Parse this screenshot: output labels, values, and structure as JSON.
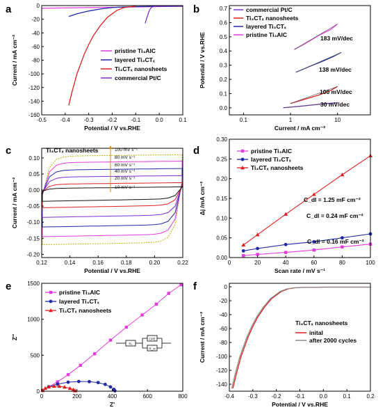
{
  "colors": {
    "pristine": "#e33be0",
    "layered": "#1f2aa6",
    "nanosheets": "#e02020",
    "pt": "#7b2fd0",
    "after2000": "#8a8a8a"
  },
  "chart_data": [
    {
      "panel": "a",
      "type": "line",
      "xlabel": "Potential / V vs.RHE",
      "ylabel": "Current / mA cm⁻²",
      "xlim": [
        -0.5,
        0.1
      ],
      "ylim": [
        -160,
        0
      ],
      "xticks": [
        "-0.5",
        "-0.4",
        "-0.3",
        "-0.2",
        "-0.1",
        "0.0",
        "0.1"
      ],
      "yticks": [
        "-160",
        "-140",
        "-120",
        "-100",
        "-80",
        "-60",
        "-40",
        "-20",
        "0"
      ],
      "legend": [
        {
          "text": "pristine Ti₃AlC",
          "color": "pristine"
        },
        {
          "text": "layered Ti₃CTₓ",
          "color": "layered"
        },
        {
          "text": "Ti₃CTₓ nanosheets",
          "color": "nanosheets"
        },
        {
          "text": "commercial Pt/C",
          "color": "pt"
        }
      ],
      "series": [
        {
          "name": "pristine Ti₃AlC",
          "color": "pristine",
          "x": [
            -0.5,
            -0.4,
            -0.3,
            -0.2,
            -0.1,
            0.0,
            0.1
          ],
          "y": [
            -4,
            -3.5,
            -3,
            -2.5,
            -2,
            -1.5,
            -1
          ]
        },
        {
          "name": "layered Ti₃CTₓ",
          "color": "layered",
          "x": [
            -0.385,
            -0.35,
            -0.3,
            -0.25,
            -0.2,
            -0.15,
            -0.1,
            0.0,
            0.1
          ],
          "y": [
            -16,
            -12,
            -8,
            -5,
            -3,
            -2,
            -1.5,
            -1,
            -1
          ]
        },
        {
          "name": "Ti₃CTₓ nanosheets",
          "color": "nanosheets",
          "x": [
            -0.385,
            -0.37,
            -0.35,
            -0.32,
            -0.3,
            -0.28,
            -0.25,
            -0.22,
            -0.2,
            -0.18,
            -0.15,
            -0.12,
            -0.1
          ],
          "y": [
            -146,
            -125,
            -100,
            -72,
            -57,
            -44,
            -29,
            -17,
            -12,
            -7,
            -3,
            -1.5,
            -1
          ]
        },
        {
          "name": "commercial Pt/C",
          "color": "pt",
          "x": [
            -0.06,
            -0.055,
            -0.05,
            -0.045,
            -0.04,
            -0.035,
            -0.03,
            -0.02,
            0.0,
            0.1
          ],
          "y": [
            -26,
            -20,
            -15,
            -10,
            -6,
            -3.5,
            -2,
            -1,
            -0.5,
            -0.5
          ]
        }
      ]
    },
    {
      "panel": "b",
      "type": "line",
      "xlabel": "Current / mA cm⁻²",
      "ylabel": "Potential / V vs.RHE",
      "xscale": "log",
      "xlim": [
        0.05,
        50
      ],
      "ylim": [
        -0.05,
        0.72
      ],
      "xticks": [
        "0.1",
        "1",
        "10"
      ],
      "xtick_values": [
        0.1,
        1,
        10
      ],
      "yticks": [
        "0.0",
        "0.1",
        "0.2",
        "0.3",
        "0.4",
        "0.5",
        "0.6",
        "0.7"
      ],
      "legend": [
        {
          "text": "commercial Pt/C",
          "color": "pt"
        },
        {
          "text": "Ti₃CTₓ nanosheets",
          "color": "nanosheets"
        },
        {
          "text": "layered Ti₃CTₓ",
          "color": "layered"
        },
        {
          "text": "pristine Ti₃AlC",
          "color": "pristine"
        }
      ],
      "annotations": [
        "183 mV/dec",
        "138 mV/dec",
        "100 mV/dec",
        "30 mV/dec"
      ],
      "series": [
        {
          "name": "pristine Ti₃AlC",
          "color": "pristine",
          "x": [
            1.2,
            2,
            4,
            7,
            10
          ],
          "y": [
            0.41,
            0.45,
            0.51,
            0.55,
            0.59
          ]
        },
        {
          "name": "layered Ti₃CTₓ",
          "color": "layered",
          "x": [
            1.3,
            2.5,
            5,
            8,
            12
          ],
          "y": [
            0.25,
            0.29,
            0.33,
            0.36,
            0.39
          ]
        },
        {
          "name": "Ti₃CTₓ nanosheets",
          "color": "nanosheets",
          "x": [
            1.0,
            2,
            4,
            7,
            10
          ],
          "y": [
            0.03,
            0.06,
            0.09,
            0.12,
            0.15
          ]
        },
        {
          "name": "commercial Pt/C",
          "color": "pt",
          "x": [
            0.7,
            1.5,
            3,
            6,
            10
          ],
          "y": [
            0.0,
            0.01,
            0.02,
            0.03,
            0.035
          ]
        }
      ]
    },
    {
      "panel": "c",
      "type": "line",
      "xlabel": "Potential / V vs.RHE",
      "ylabel": "Current / mA cm⁻²",
      "xlim": [
        0.12,
        0.22
      ],
      "ylim": [
        -0.21,
        0.13
      ],
      "xticks": [
        "0.12",
        "0.14",
        "0.16",
        "0.18",
        "0.20",
        "0.22"
      ],
      "yticks": [
        "-0.20",
        "-0.15",
        "-0.10",
        "-0.05",
        "0.00",
        "0.05",
        "0.10"
      ],
      "title": "Ti₃CTₓ nanosheets",
      "rates": [
        {
          "label": "100 mV s⁻¹",
          "top": 0.105,
          "bottom": -0.17,
          "color": "#b8b400",
          "dashed": true
        },
        {
          "label": "80 mV s⁻¹",
          "top": 0.085,
          "bottom": -0.145,
          "color": "#e33be0"
        },
        {
          "label": "60 mV s⁻¹",
          "top": 0.062,
          "bottom": -0.115,
          "color": "#1f2aa6"
        },
        {
          "label": "40 mV s⁻¹",
          "top": 0.04,
          "bottom": -0.085,
          "color": "#7b2fd0"
        },
        {
          "label": "20 mV s⁻¹",
          "top": 0.018,
          "bottom": -0.055,
          "color": "#e02020"
        },
        {
          "label": "10 mV s⁻¹",
          "top": 0.005,
          "bottom": -0.035,
          "color": "#111111"
        }
      ]
    },
    {
      "panel": "d",
      "type": "line",
      "xlabel": "Scan rate / mV s⁻¹",
      "ylabel": "Δj /mA cm⁻²",
      "xlim": [
        0,
        100
      ],
      "ylim": [
        0,
        0.3
      ],
      "xticks": [
        "0",
        "20",
        "40",
        "60",
        "80",
        "100"
      ],
      "yticks": [
        "0.00",
        "0.05",
        "0.10",
        "0.15",
        "0.20",
        "0.25",
        "0.30"
      ],
      "legend": [
        {
          "text": "pristine Ti₃AlC",
          "color": "pristine"
        },
        {
          "text": "layered Ti₃CTₓ",
          "color": "layered"
        },
        {
          "text": "Ti₃CTₓ nanosheets",
          "color": "nanosheets"
        }
      ],
      "annotations": [
        "C_dl = 1.25 mF cm⁻²",
        "C_dl = 0.24 mF cm⁻²",
        "C_dl = 0.16 mF cm⁻²"
      ],
      "series": [
        {
          "name": "pristine Ti₃AlC",
          "color": "pristine",
          "x": [
            10,
            20,
            40,
            60,
            80,
            100
          ],
          "y": [
            0.005,
            0.008,
            0.013,
            0.019,
            0.027,
            0.034
          ]
        },
        {
          "name": "layered Ti₃CTₓ",
          "color": "layered",
          "x": [
            10,
            20,
            40,
            60,
            80,
            100
          ],
          "y": [
            0.017,
            0.023,
            0.033,
            0.04,
            0.05,
            0.06
          ]
        },
        {
          "name": "Ti₃CTₓ nanosheets",
          "color": "nanosheets",
          "x": [
            10,
            20,
            40,
            60,
            80,
            100
          ],
          "y": [
            0.032,
            0.058,
            0.11,
            0.16,
            0.21,
            0.258
          ]
        }
      ]
    },
    {
      "panel": "e",
      "type": "scatter",
      "xlabel": "Z'",
      "ylabel": "Z''",
      "xlim": [
        0,
        800
      ],
      "ylim": [
        0,
        1500
      ],
      "xticks": [
        "0",
        "200",
        "400",
        "600",
        "800"
      ],
      "yticks": [
        "0",
        "500",
        "1000",
        "1500"
      ],
      "legend": [
        {
          "text": "pristine Ti₃AlC",
          "color": "pristine"
        },
        {
          "text": "layered Ti₃CTₓ",
          "color": "layered"
        },
        {
          "text": "Ti₃CTₓ nanosheets",
          "color": "nanosheets"
        }
      ],
      "circuit_labels": [
        "Rₛ",
        "CPE",
        "R_ct"
      ],
      "series": [
        {
          "name": "pristine Ti₃AlC",
          "color": "pristine",
          "x": [
            5,
            40,
            90,
            150,
            220,
            300,
            390,
            480,
            570,
            650,
            720,
            790
          ],
          "y": [
            10,
            60,
            130,
            230,
            360,
            520,
            710,
            890,
            1060,
            1210,
            1360,
            1480
          ]
        },
        {
          "name": "layered Ti₃CTₓ",
          "color": "layered",
          "x": [
            5,
            40,
            90,
            150,
            210,
            270,
            320,
            360,
            390,
            410,
            415
          ],
          "y": [
            10,
            60,
            100,
            125,
            135,
            133,
            120,
            95,
            60,
            25,
            5
          ]
        },
        {
          "name": "Ti₃CTₓ nanosheets",
          "color": "nanosheets",
          "x": [
            5,
            20,
            40,
            70,
            100,
            130,
            160,
            180,
            190
          ],
          "y": [
            10,
            40,
            60,
            70,
            68,
            58,
            40,
            22,
            5
          ]
        }
      ]
    },
    {
      "panel": "f",
      "type": "line",
      "xlabel": "Potential / V vs.RHE",
      "ylabel": "Current / mA cm⁻²",
      "xlim": [
        -0.4,
        0.2
      ],
      "ylim": [
        -150,
        5
      ],
      "xticks": [
        "-0.4",
        "-0.3",
        "-0.2",
        "-0.1",
        "0.0",
        "0.1",
        "0.2"
      ],
      "yticks": [
        "-140",
        "-120",
        "-100",
        "-80",
        "-60",
        "-40",
        "-20",
        "0"
      ],
      "title": "Ti₃CTₓ nanosheets",
      "legend": [
        {
          "text": "inital",
          "color": "nanosheets"
        },
        {
          "text": "after 2000 cycles",
          "color": "after2000"
        }
      ],
      "series": [
        {
          "name": "inital",
          "color": "nanosheets",
          "x": [
            -0.385,
            -0.37,
            -0.35,
            -0.32,
            -0.3,
            -0.28,
            -0.25,
            -0.22,
            -0.2,
            -0.18,
            -0.15,
            -0.12,
            -0.1,
            0.0,
            0.2
          ],
          "y": [
            -146,
            -125,
            -100,
            -72,
            -57,
            -44,
            -29,
            -17,
            -12,
            -7,
            -3,
            -1.5,
            -1,
            -0.5,
            -0.5
          ]
        },
        {
          "name": "after 2000 cycles",
          "color": "after2000",
          "x": [
            -0.39,
            -0.375,
            -0.355,
            -0.325,
            -0.305,
            -0.285,
            -0.255,
            -0.225,
            -0.205,
            -0.185,
            -0.155,
            -0.125,
            -0.1,
            0.0,
            0.2
          ],
          "y": [
            -146,
            -125,
            -100,
            -72,
            -57,
            -44,
            -29,
            -17,
            -12,
            -7,
            -3,
            -1.5,
            -1,
            -0.5,
            -0.5
          ]
        }
      ]
    }
  ]
}
